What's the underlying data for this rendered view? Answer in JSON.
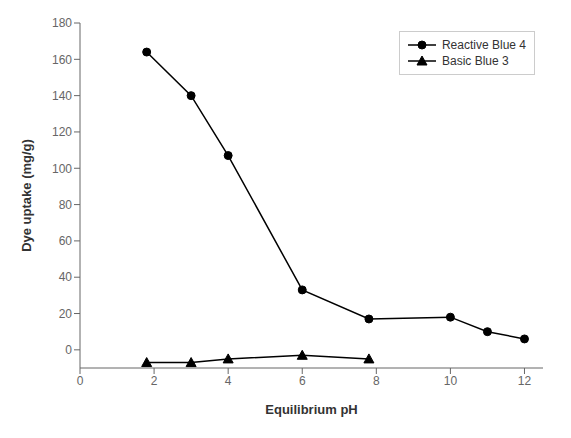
{
  "chart_data": {
    "type": "line",
    "xlabel": "Equilibrium pH",
    "ylabel": "Dye uptake (mg/g)",
    "xlim": [
      0,
      12.5
    ],
    "ylim": [
      -10,
      180
    ],
    "xticks": [
      0,
      2,
      4,
      6,
      8,
      10,
      12
    ],
    "yticks": [
      0,
      20,
      40,
      60,
      80,
      100,
      120,
      140,
      160,
      180
    ],
    "grid": false,
    "legend": "upper right",
    "series": [
      {
        "name": "Reactive Blue 4",
        "color": "#000000",
        "marker": "circle",
        "x": [
          1.8,
          3.0,
          4.0,
          6.0,
          7.8,
          10.0,
          11.0,
          12.0
        ],
        "values": [
          164,
          140,
          107,
          33,
          17,
          18,
          10,
          6
        ]
      },
      {
        "name": "Basic Blue 3",
        "color": "#000000",
        "marker": "triangle",
        "x": [
          1.8,
          3.0,
          4.0,
          6.0,
          7.8
        ],
        "values": [
          -7,
          -7,
          -5,
          -3,
          -5
        ]
      }
    ]
  }
}
